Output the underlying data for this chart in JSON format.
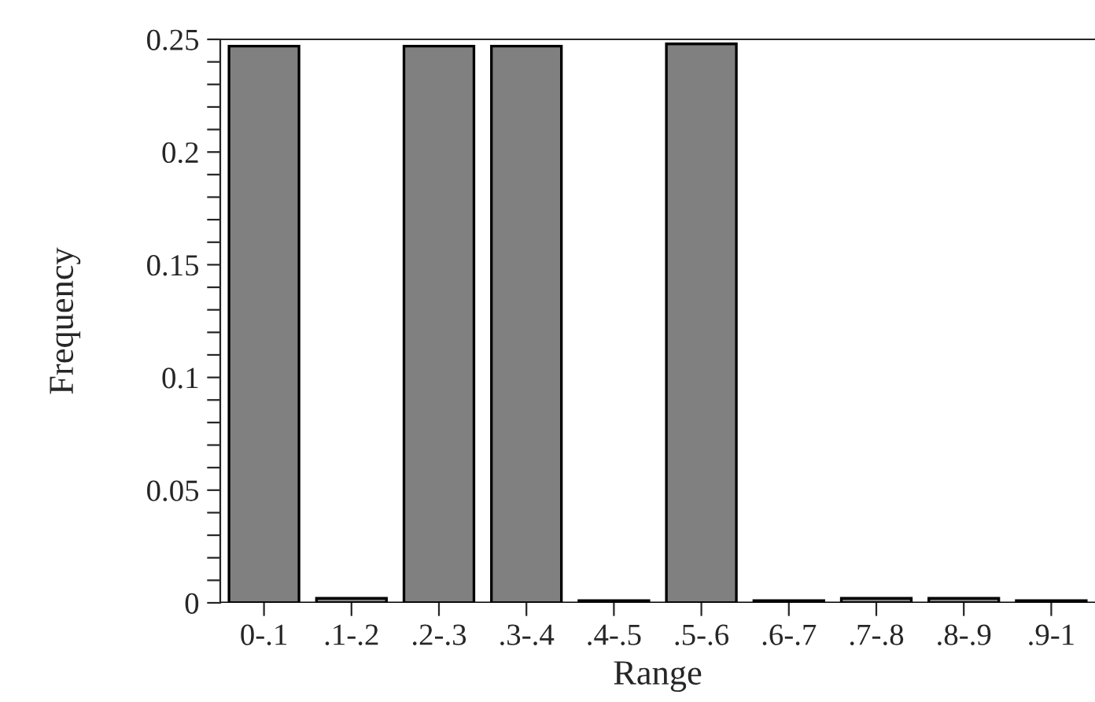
{
  "chart_data": {
    "type": "bar",
    "xlabel": "Range",
    "ylabel": "Frequency",
    "categories": [
      "0-.1",
      ".1-.2",
      ".2-.3",
      ".3-.4",
      ".4-.5",
      ".5-.6",
      ".6-.7",
      ".7-.8",
      ".8-.9",
      ".9-1"
    ],
    "values": [
      0.247,
      0.002,
      0.247,
      0.247,
      0.001,
      0.248,
      0.001,
      0.002,
      0.002,
      0.001
    ],
    "color": "#808080",
    "ylim": [
      0,
      0.25
    ],
    "yticks": [
      0,
      {
        "value": 0.01,
        "label": null
      },
      {
        "value": 0.02,
        "label": null
      },
      {
        "value": 0.03,
        "label": null
      },
      {
        "value": 0.04,
        "label": null
      },
      0.05,
      {
        "value": 0.06,
        "label": null
      },
      {
        "value": 0.07,
        "label": null
      },
      {
        "value": 0.08,
        "label": null
      },
      {
        "value": 0.09,
        "label": null
      },
      0.1,
      {
        "value": 0.11,
        "label": null
      },
      {
        "value": 0.12,
        "label": null
      },
      {
        "value": 0.13,
        "label": null
      },
      {
        "value": 0.14,
        "label": null
      },
      0.15,
      {
        "value": 0.16,
        "label": null
      },
      {
        "value": 0.17,
        "label": null
      },
      {
        "value": 0.18,
        "label": null
      },
      {
        "value": 0.19,
        "label": null
      },
      0.2,
      {
        "value": 0.21,
        "label": null
      },
      {
        "value": 0.22,
        "label": null
      },
      {
        "value": 0.23,
        "label": null
      },
      {
        "value": 0.24,
        "label": null
      },
      0.25
    ],
    "grid": false
  }
}
